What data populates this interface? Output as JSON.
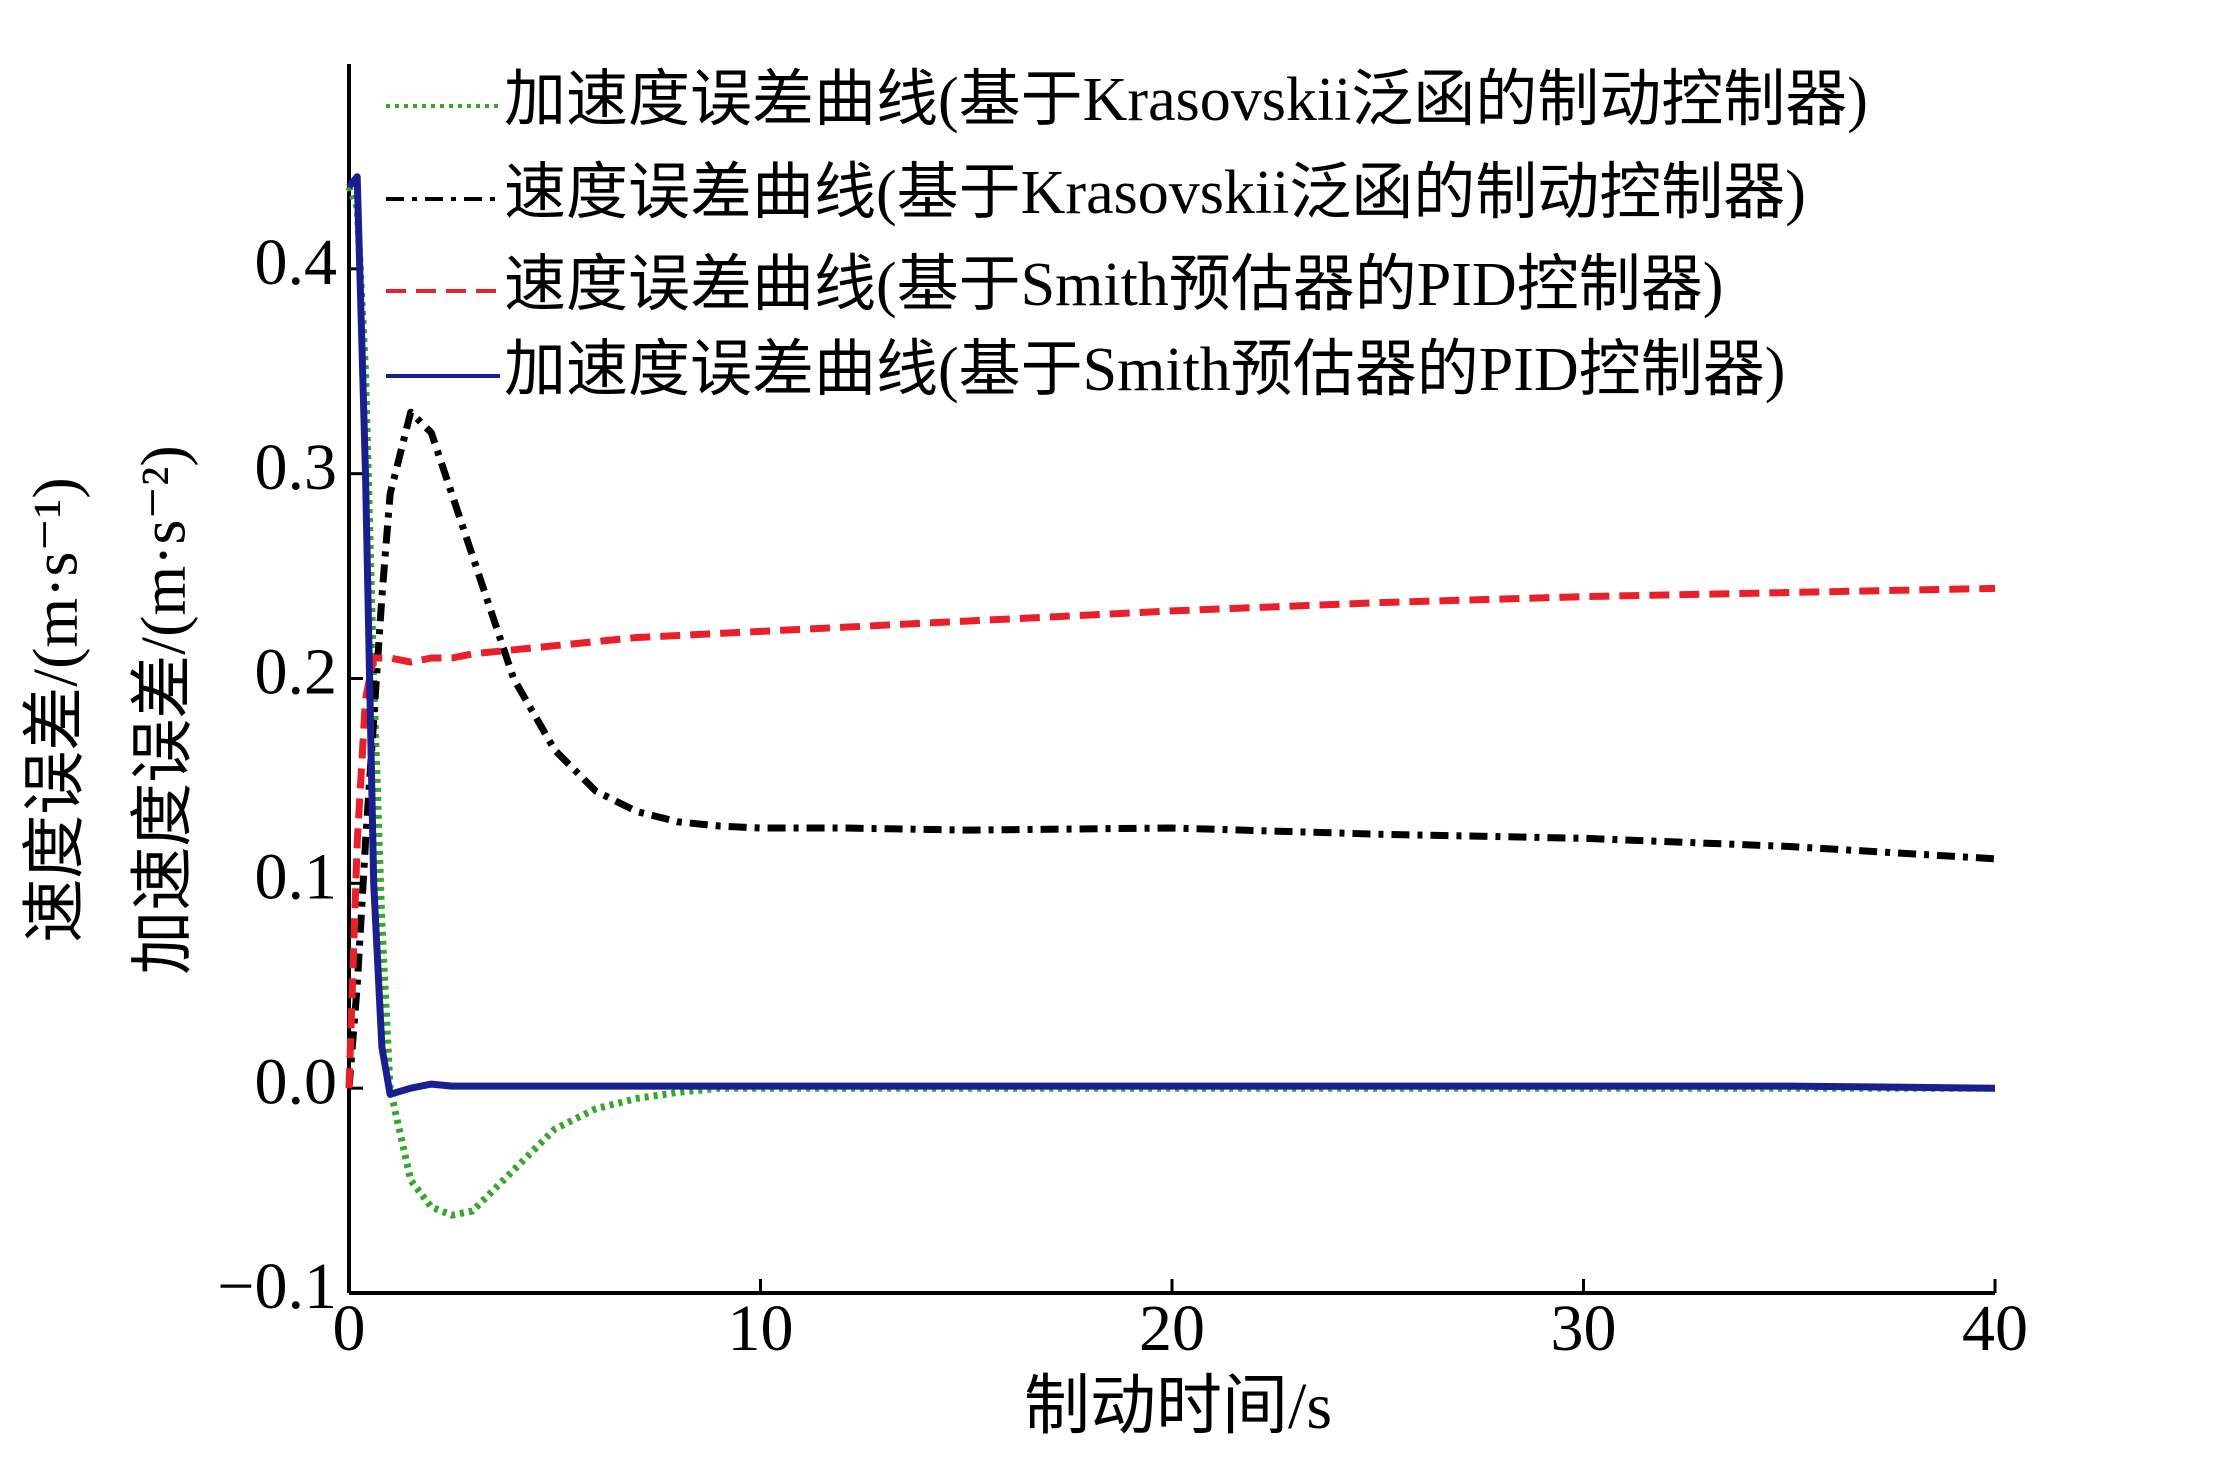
{
  "chart_data": {
    "type": "line",
    "xlabel": "制动时间/s",
    "ylabel": [
      "速度误差/(m·s⁻¹)",
      "加速度误差/(m·s⁻²)"
    ],
    "x": [
      0,
      0.2,
      0.4,
      0.6,
      0.8,
      1,
      1.5,
      2,
      2.5,
      3,
      4,
      5,
      6,
      7,
      8,
      9,
      10,
      12,
      15,
      20,
      25,
      30,
      35,
      40
    ],
    "xlim": [
      0,
      40
    ],
    "xticks": [
      0,
      10,
      20,
      30,
      40
    ],
    "ylim": [
      -0.1,
      0.5
    ],
    "yticks": [
      {
        "value": -0.1,
        "label": "−0.1"
      },
      {
        "value": 0,
        "label": "0.0"
      },
      0.1,
      0.2,
      0.3,
      0.4
    ],
    "legend": "upper right",
    "series": [
      {
        "name": "加速度误差曲线(基于Krasovskii泛函的制动控制器)",
        "color": "#35a82a",
        "linestyle": "dotted",
        "values": [
          0.44,
          0.43,
          0.35,
          0.2,
          0.08,
          0.0,
          -0.045,
          -0.058,
          -0.062,
          -0.06,
          -0.04,
          -0.02,
          -0.01,
          -0.005,
          -0.002,
          0,
          0,
          0,
          0,
          0,
          0,
          0,
          0,
          0
        ]
      },
      {
        "name": "速度误差曲线(基于Krasovskii泛函的制动控制器)",
        "color": "#000000",
        "linestyle": "dashdot",
        "values": [
          0,
          0.05,
          0.12,
          0.18,
          0.24,
          0.29,
          0.33,
          0.32,
          0.29,
          0.26,
          0.2,
          0.165,
          0.145,
          0.135,
          0.13,
          0.128,
          0.127,
          0.127,
          0.126,
          0.127,
          0.124,
          0.122,
          0.118,
          0.112
        ]
      },
      {
        "name": "速度误差曲线(基于Smith预估器的PID控制器)",
        "color": "#e8202a",
        "linestyle": "dashed",
        "values": [
          0,
          0.12,
          0.19,
          0.21,
          0.21,
          0.21,
          0.208,
          0.21,
          0.21,
          0.212,
          0.214,
          0.216,
          0.218,
          0.22,
          0.221,
          0.222,
          0.223,
          0.225,
          0.228,
          0.233,
          0.237,
          0.24,
          0.242,
          0.244
        ]
      },
      {
        "name": "加速度误差曲线(基于Smith预估器的PID控制器)",
        "color": "#1a1f8f",
        "linestyle": "solid",
        "values": [
          0.44,
          0.445,
          0.3,
          0.1,
          0.02,
          -0.003,
          0,
          0.002,
          0.001,
          0.001,
          0.001,
          0.001,
          0.001,
          0.001,
          0.001,
          0.001,
          0.001,
          0.001,
          0.001,
          0.001,
          0.001,
          0.001,
          0.001,
          0.0
        ]
      }
    ]
  }
}
